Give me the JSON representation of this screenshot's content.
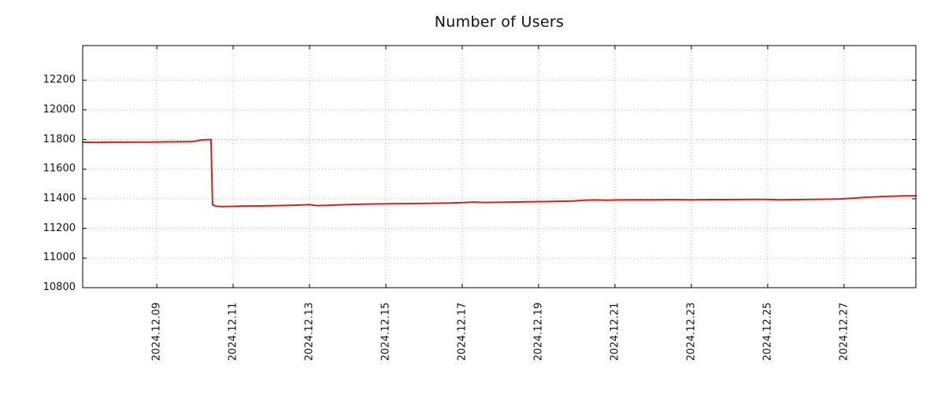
{
  "chart_data": {
    "type": "line",
    "title": "Number of Users",
    "xlabel": "",
    "ylabel": "",
    "grid": "dotted",
    "legend": "none",
    "series_color": "#cc2222",
    "grid_color": "#b5b5b5",
    "frame_color": "#000000",
    "xlim_days": [
      7.06,
      28.88
    ],
    "ylim": [
      10800,
      12434
    ],
    "y_ticks": [
      10800,
      11000,
      11200,
      11400,
      11600,
      11800,
      12000,
      12200
    ],
    "x_ticks": [
      {
        "day": 9,
        "label": "2024.12.09"
      },
      {
        "day": 11,
        "label": "2024.12.11"
      },
      {
        "day": 13,
        "label": "2024.12.13"
      },
      {
        "day": 15,
        "label": "2024.12.15"
      },
      {
        "day": 17,
        "label": "2024.12.17"
      },
      {
        "day": 19,
        "label": "2024.12.19"
      },
      {
        "day": 21,
        "label": "2024.12.21"
      },
      {
        "day": 23,
        "label": "2024.12.23"
      },
      {
        "day": 25,
        "label": "2024.12.25"
      },
      {
        "day": 27,
        "label": "2024.12.27"
      }
    ],
    "series": [
      {
        "name": "Number of Users",
        "points": [
          [
            7.06,
            11783
          ],
          [
            7.4,
            11780
          ],
          [
            7.7,
            11782
          ],
          [
            8.0,
            11782
          ],
          [
            8.4,
            11783
          ],
          [
            8.8,
            11783
          ],
          [
            9.2,
            11784
          ],
          [
            9.6,
            11785
          ],
          [
            9.9,
            11786
          ],
          [
            10.05,
            11790
          ],
          [
            10.15,
            11797
          ],
          [
            10.3,
            11799
          ],
          [
            10.42,
            11800
          ],
          [
            10.46,
            11360
          ],
          [
            10.55,
            11350
          ],
          [
            10.7,
            11347
          ],
          [
            11.0,
            11349
          ],
          [
            11.3,
            11351
          ],
          [
            11.7,
            11352
          ],
          [
            12.0,
            11353
          ],
          [
            12.4,
            11355
          ],
          [
            12.8,
            11358
          ],
          [
            13.0,
            11360
          ],
          [
            13.2,
            11354
          ],
          [
            13.5,
            11356
          ],
          [
            13.9,
            11360
          ],
          [
            14.3,
            11363
          ],
          [
            14.7,
            11365
          ],
          [
            15.1,
            11366
          ],
          [
            15.5,
            11367
          ],
          [
            15.9,
            11368
          ],
          [
            16.3,
            11370
          ],
          [
            16.7,
            11372
          ],
          [
            17.0,
            11374
          ],
          [
            17.3,
            11378
          ],
          [
            17.6,
            11375
          ],
          [
            17.9,
            11376
          ],
          [
            18.3,
            11378
          ],
          [
            18.7,
            11380
          ],
          [
            19.1,
            11381
          ],
          [
            19.5,
            11383
          ],
          [
            19.9,
            11385
          ],
          [
            20.2,
            11390
          ],
          [
            20.5,
            11392
          ],
          [
            20.8,
            11390
          ],
          [
            21.1,
            11392
          ],
          [
            21.5,
            11393
          ],
          [
            22.0,
            11393
          ],
          [
            22.5,
            11394
          ],
          [
            23.0,
            11393
          ],
          [
            23.5,
            11394
          ],
          [
            24.0,
            11394
          ],
          [
            24.5,
            11396
          ],
          [
            25.0,
            11396
          ],
          [
            25.3,
            11393
          ],
          [
            25.7,
            11394
          ],
          [
            26.1,
            11395
          ],
          [
            26.5,
            11397
          ],
          [
            26.9,
            11399
          ],
          [
            27.2,
            11403
          ],
          [
            27.5,
            11409
          ],
          [
            27.8,
            11413
          ],
          [
            28.1,
            11416
          ],
          [
            28.5,
            11419
          ],
          [
            28.88,
            11420
          ]
        ]
      }
    ]
  }
}
